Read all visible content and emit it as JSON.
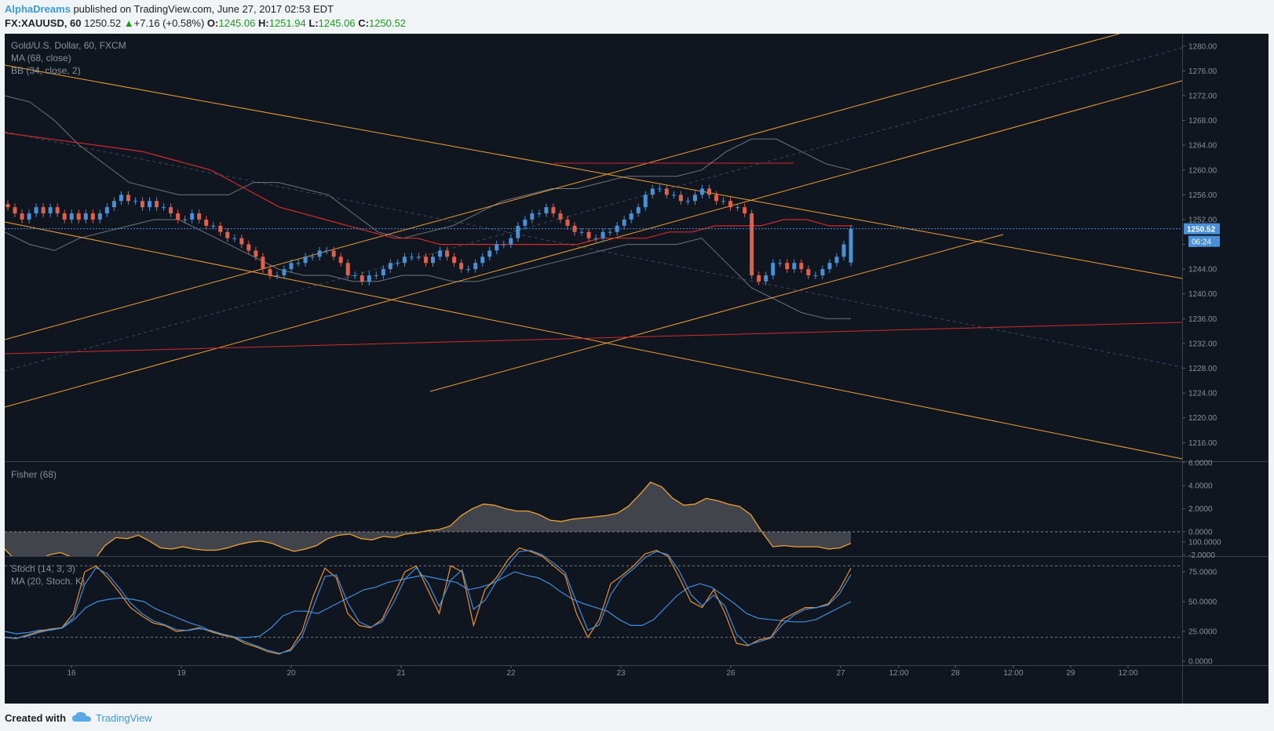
{
  "header": {
    "author": "AlphaDreams",
    "published_text": "published on TradingView.com, June 27, 2017 02:53 EDT",
    "symbol": "FX:XAUUSD, 60",
    "last_price": "1250.52",
    "arrow": "▲",
    "change": "+7.16 (+0.58%)",
    "o_label": "O:",
    "o_value": "1245.06",
    "h_label": "H:",
    "h_value": "1251.94",
    "l_label": "L:",
    "l_value": "1245.06",
    "c_label": "C:",
    "c_value": "1250.52"
  },
  "legend": {
    "title": "Gold/U.S. Dollar, 60, FXCM",
    "ma": "MA (68, close)",
    "bb": "BB (34, close, 2)",
    "fisher": "Fisher (68)",
    "stoch": "Stoch (14, 3, 3)",
    "stoch_ma": "MA (20, Stoch. K)"
  },
  "badges": {
    "price": "1250.52",
    "countdown": "06:24"
  },
  "footer": {
    "created_with": "Created with",
    "brand": "TradingView"
  },
  "colors": {
    "background": "#0f1620",
    "bull": "#4a90d9",
    "bear": "#e0604a",
    "channel": "#f0a030",
    "ma": "#d42a2a",
    "bands": "#b0b4ba",
    "fisher": "#f0a030",
    "stoch_k": "#3d8fe0",
    "stoch_d": "#f0902a"
  },
  "chart_data": [
    {
      "type": "candlestick",
      "title": "Gold/U.S. Dollar, 60, FXCM",
      "x_tick_labels": [
        "16",
        "19",
        "20",
        "21",
        "22",
        "23",
        "26",
        "27",
        "12:00",
        "28",
        "12:00",
        "29",
        "12:00"
      ],
      "y_ticks": [
        1216,
        1220,
        1224,
        1228,
        1232,
        1236,
        1240,
        1244,
        1248,
        1252,
        1256,
        1260,
        1264,
        1268,
        1272,
        1276,
        1280
      ],
      "ylim": [
        1213,
        1282
      ],
      "last_price": 1250.52,
      "open": 1245.06,
      "high": 1251.94,
      "low": 1245.06,
      "close": 1250.52,
      "closes": [
        1254,
        1253,
        1252,
        1253,
        1254,
        1253,
        1254,
        1253,
        1252,
        1253,
        1252,
        1253,
        1252,
        1253,
        1254,
        1255,
        1256,
        1255,
        1255,
        1254,
        1255,
        1254,
        1254,
        1253,
        1252,
        1252,
        1253,
        1252,
        1251,
        1251,
        1250,
        1249,
        1249,
        1248,
        1247,
        1246,
        1244,
        1243,
        1243,
        1244,
        1245,
        1245,
        1246,
        1246,
        1247,
        1247,
        1246,
        1245,
        1243,
        1243,
        1242,
        1243,
        1243,
        1244,
        1245,
        1245,
        1246,
        1246,
        1246,
        1245,
        1246,
        1247,
        1246,
        1245,
        1244,
        1244,
        1245,
        1246,
        1247,
        1248,
        1248,
        1249,
        1251,
        1252,
        1253,
        1253,
        1254,
        1253,
        1252,
        1251,
        1250,
        1250,
        1249,
        1249,
        1250,
        1250,
        1251,
        1252,
        1253,
        1254,
        1256,
        1257,
        1257,
        1256,
        1256,
        1255,
        1255,
        1256,
        1257,
        1256,
        1255,
        1255,
        1254,
        1254,
        1253,
        1243,
        1242,
        1243,
        1245,
        1245,
        1244,
        1245,
        1244,
        1243,
        1243,
        1244,
        1245,
        1246,
        1248,
        1250.5
      ],
      "ma_68": [
        1266,
        1265.5,
        1265,
        1264.5,
        1264,
        1263.5,
        1263,
        1262,
        1261,
        1260,
        1258,
        1256,
        1254,
        1253,
        1252,
        1251,
        1250,
        1249,
        1249,
        1248,
        1248,
        1248,
        1248,
        1248,
        1248,
        1248,
        1249,
        1249,
        1249,
        1250,
        1250,
        1251,
        1251,
        1251,
        1252,
        1252,
        1251,
        1251
      ],
      "bb_upper": [
        1272,
        1271,
        1268,
        1264,
        1261,
        1258,
        1257,
        1256,
        1256,
        1256,
        1258,
        1258,
        1257,
        1256,
        1253,
        1250,
        1249,
        1250,
        1251,
        1253,
        1255,
        1256,
        1257,
        1257,
        1258,
        1259,
        1259,
        1259,
        1260,
        1263,
        1265,
        1265,
        1263,
        1261,
        1260
      ],
      "bb_lower": [
        1250,
        1248,
        1247,
        1249,
        1250,
        1251,
        1252,
        1252,
        1250,
        1248,
        1246,
        1244,
        1243,
        1243,
        1242,
        1242,
        1243,
        1243,
        1242,
        1242,
        1243,
        1244,
        1245,
        1246,
        1247,
        1248,
        1248,
        1248,
        1249,
        1245,
        1241,
        1239,
        1237,
        1236,
        1236
      ]
    },
    {
      "type": "line",
      "title": "Fisher (68)",
      "y_ticks": [
        -2,
        0,
        2,
        4,
        6
      ],
      "ylim": [
        -2,
        6
      ],
      "values": [
        -1.5,
        -2.5,
        -3,
        -2.5,
        -2,
        -1.8,
        -2.2,
        -3,
        -2.5,
        -1.2,
        -0.5,
        -0.6,
        -0.3,
        -0.8,
        -1.4,
        -1.5,
        -1.3,
        -1.5,
        -1.6,
        -1.6,
        -1.4,
        -1.1,
        -0.9,
        -0.8,
        -1,
        -1.4,
        -1.7,
        -1.5,
        -1.2,
        -0.6,
        -0.3,
        -0.2,
        -0.6,
        -0.7,
        -0.4,
        -0.5,
        -0.2,
        -0.1,
        0.1,
        0.2,
        0.5,
        1.4,
        2.0,
        2.4,
        2.3,
        2.0,
        1.8,
        1.8,
        1.5,
        1.0,
        0.9,
        1.1,
        1.2,
        1.3,
        1.4,
        1.6,
        2.2,
        3.2,
        4.3,
        3.9,
        2.9,
        2.3,
        2.4,
        2.9,
        2.7,
        2.4,
        2.2,
        1.5,
        0,
        -1.3,
        -1.2,
        -1.3,
        -1.3,
        -1.3,
        -1.5,
        -1.4,
        -1.0
      ]
    },
    {
      "type": "line",
      "title": "Stoch (14, 3, 3)",
      "y_ticks": [
        0,
        25,
        50,
        75,
        100
      ],
      "ylim": [
        0,
        100
      ],
      "series": [
        {
          "name": "Stoch (14, 3, 3)",
          "values": [
            20,
            19,
            22,
            25,
            27,
            28,
            40,
            75,
            80,
            70,
            58,
            45,
            38,
            32,
            30,
            25,
            26,
            28,
            25,
            22,
            20,
            15,
            12,
            8,
            6,
            10,
            25,
            55,
            78,
            70,
            40,
            30,
            28,
            35,
            55,
            75,
            80,
            60,
            40,
            80,
            75,
            30,
            60,
            70,
            85,
            95,
            92,
            88,
            80,
            72,
            40,
            20,
            35,
            65,
            72,
            80,
            90,
            93,
            88,
            70,
            50,
            45,
            60,
            40,
            15,
            13,
            18,
            20,
            35,
            40,
            45,
            45,
            48,
            60,
            78
          ]
        },
        {
          "name": "MA (20, Stoch. K)",
          "values": [
            25,
            23,
            24,
            26,
            26,
            28,
            35,
            45,
            50,
            52,
            53,
            52,
            50,
            44,
            40,
            36,
            32,
            29,
            24,
            22,
            20,
            20,
            21,
            28,
            38,
            42,
            42,
            40,
            45,
            50,
            55,
            60,
            62,
            66,
            68,
            70,
            72,
            70,
            68,
            66,
            60,
            62,
            65,
            70,
            75,
            72,
            70,
            65,
            58,
            52,
            48,
            45,
            42,
            35,
            30,
            30,
            35,
            45,
            55,
            62,
            65,
            62,
            55,
            48,
            40,
            36,
            35,
            34,
            33,
            33,
            35,
            40,
            45,
            50
          ]
        }
      ]
    }
  ]
}
